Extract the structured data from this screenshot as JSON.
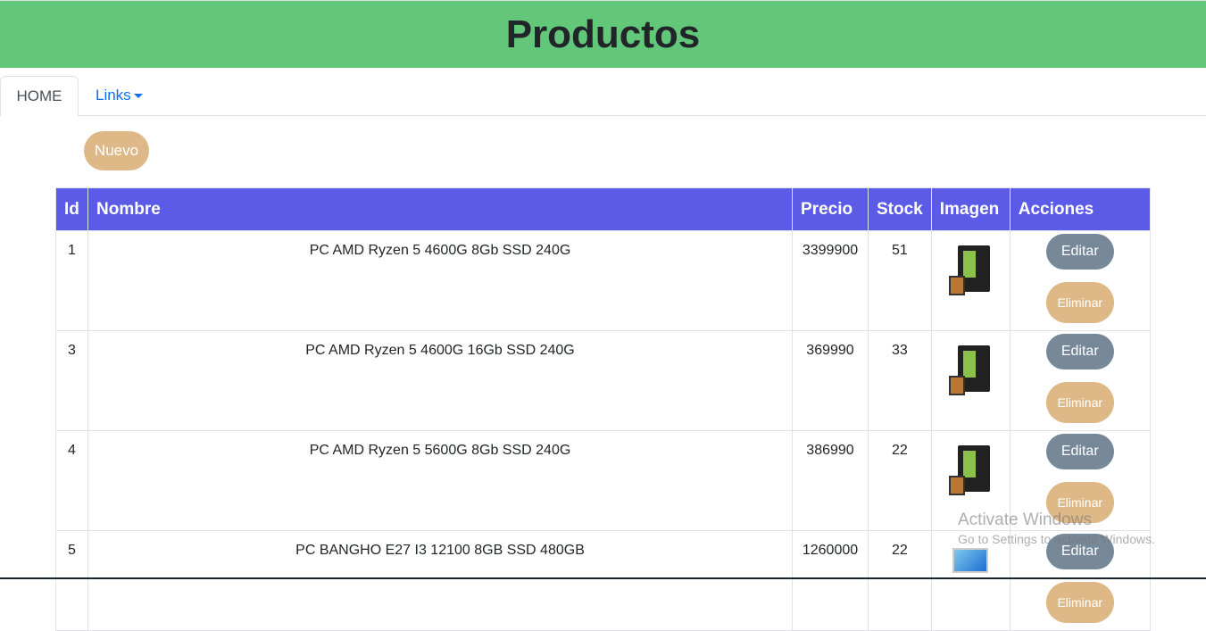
{
  "header": {
    "title": "Productos"
  },
  "nav": {
    "home": "HOME",
    "links": "Links"
  },
  "toolbar": {
    "new_label": "Nuevo"
  },
  "table": {
    "columns": [
      "Id",
      "Nombre",
      "Precio",
      "Stock",
      "Imagen",
      "Acciones"
    ],
    "rows": [
      {
        "id": "1",
        "nombre": "PC AMD Ryzen 5 4600G 8Gb SSD 240G",
        "precio": "3399900",
        "stock": "51",
        "image": "pc-tower"
      },
      {
        "id": "3",
        "nombre": "PC AMD Ryzen 5 4600G 16Gb SSD 240G",
        "precio": "369990",
        "stock": "33",
        "image": "pc-tower"
      },
      {
        "id": "4",
        "nombre": "PC AMD Ryzen 5 5600G 8Gb SSD 240G",
        "precio": "386990",
        "stock": "22",
        "image": "pc-tower"
      },
      {
        "id": "5",
        "nombre": "PC BANGHO E27 I3 12100 8GB SSD 480GB",
        "precio": "1260000",
        "stock": "22",
        "image": "all-in-one"
      }
    ],
    "edit_label": "Editar",
    "delete_label": "Eliminar"
  },
  "watermark": {
    "line1": "Activate Windows",
    "line2": "Go to Settings to activate Windows."
  },
  "colors": {
    "header": "#63c77a",
    "table_header": "#5b5be8",
    "edit": "#778899",
    "delete": "#deb887"
  }
}
